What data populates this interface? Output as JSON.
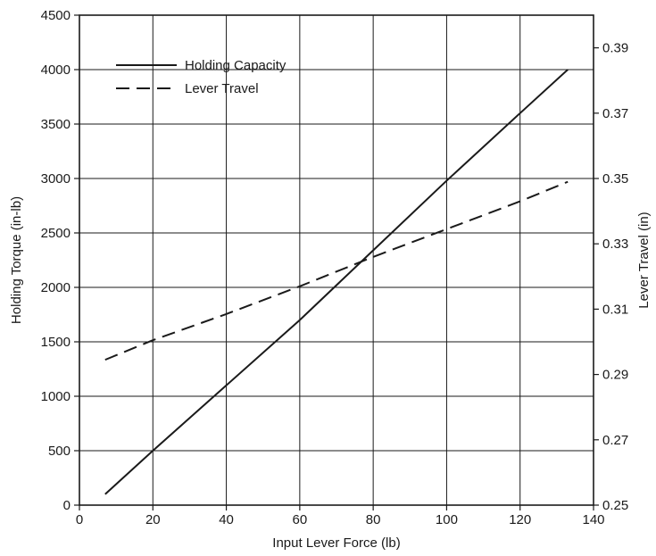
{
  "chart_data": {
    "type": "line",
    "title": "",
    "xlabel": "Input Lever Force (lb)",
    "ylabel": "Holding Torque (in-lb)",
    "y2label": "Lever Travel (in)",
    "xlim": [
      0,
      140
    ],
    "ylim": [
      0,
      4500
    ],
    "y2lim": [
      0.25,
      0.4
    ],
    "x_ticks": [
      0,
      20,
      40,
      60,
      80,
      100,
      120,
      140
    ],
    "y_ticks": [
      0,
      500,
      1000,
      1500,
      2000,
      2500,
      3000,
      3500,
      4000,
      4500
    ],
    "y2_ticks": [
      0.25,
      0.27,
      0.29,
      0.31,
      0.33,
      0.35,
      0.37,
      0.39
    ],
    "x_tick_labels": [
      "0",
      "20",
      "40",
      "60",
      "80",
      "100",
      "120",
      "140"
    ],
    "y_tick_labels": [
      "0",
      "500",
      "1000",
      "1500",
      "2000",
      "2500",
      "3000",
      "3500",
      "4000",
      "4500"
    ],
    "y2_tick_labels": [
      "0.25",
      "0.27",
      "0.29",
      "0.31",
      "0.33",
      "0.35",
      "0.37",
      "0.39"
    ],
    "grid": true,
    "legend_position": "top-left",
    "series": [
      {
        "name": "Holding Capacity",
        "axis": "left",
        "line_style": "solid",
        "color": "#1a1a1a",
        "x": [
          7,
          20,
          40,
          60,
          80,
          100,
          120,
          133
        ],
        "y": [
          100,
          500,
          1100,
          1700,
          2340,
          2980,
          3600,
          4000
        ]
      },
      {
        "name": "Lever Travel",
        "axis": "right",
        "line_style": "dashed",
        "color": "#1a1a1a",
        "x": [
          7,
          20,
          40,
          60,
          80,
          100,
          120,
          133
        ],
        "y": [
          0.2945,
          0.3005,
          0.3085,
          0.317,
          0.326,
          0.3345,
          0.343,
          0.349
        ]
      }
    ]
  }
}
